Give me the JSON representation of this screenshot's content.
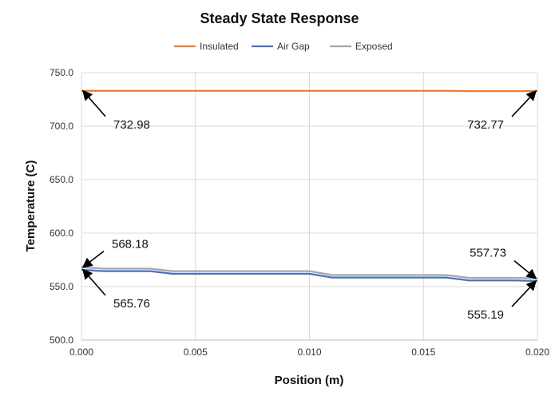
{
  "chart_data": {
    "type": "line",
    "title": "Steady State Response",
    "xlabel": "Position (m)",
    "ylabel": "Temperature (C)",
    "xlim": [
      0,
      0.02
    ],
    "ylim": [
      500,
      750
    ],
    "xticks": [
      "0.000",
      "0.005",
      "0.010",
      "0.015",
      "0.020"
    ],
    "yticks": [
      "500.0",
      "550.0",
      "600.0",
      "650.0",
      "700.0",
      "750.0"
    ],
    "grid": true,
    "legend_position": "top",
    "series": [
      {
        "name": "Insulated",
        "color": "#ED7D31",
        "x": [
          0,
          0.001,
          0.002,
          0.003,
          0.004,
          0.005,
          0.006,
          0.007,
          0.008,
          0.009,
          0.01,
          0.011,
          0.012,
          0.013,
          0.014,
          0.015,
          0.016,
          0.017,
          0.018,
          0.019,
          0.02
        ],
        "y": [
          732.98,
          732.98,
          732.98,
          732.98,
          732.98,
          732.98,
          732.98,
          732.98,
          732.98,
          732.98,
          732.98,
          732.95,
          732.95,
          732.95,
          732.95,
          732.95,
          732.95,
          732.77,
          732.77,
          732.77,
          732.77
        ]
      },
      {
        "name": "Air Gap",
        "color": "#4472C4",
        "x": [
          0,
          0.001,
          0.002,
          0.003,
          0.004,
          0.005,
          0.006,
          0.007,
          0.008,
          0.009,
          0.01,
          0.011,
          0.012,
          0.013,
          0.014,
          0.015,
          0.016,
          0.017,
          0.018,
          0.019,
          0.02
        ],
        "y": [
          565.76,
          564.5,
          564.5,
          564.5,
          562.0,
          562.0,
          562.0,
          562.0,
          562.0,
          562.0,
          562.0,
          558.5,
          558.5,
          558.5,
          558.5,
          558.5,
          558.5,
          555.8,
          555.8,
          555.8,
          555.19
        ]
      },
      {
        "name": "Exposed",
        "color": "#A5A5A5",
        "x": [
          0,
          0.001,
          0.002,
          0.003,
          0.004,
          0.005,
          0.006,
          0.007,
          0.008,
          0.009,
          0.01,
          0.011,
          0.012,
          0.013,
          0.014,
          0.015,
          0.016,
          0.017,
          0.018,
          0.019,
          0.02
        ],
        "y": [
          568.18,
          566.8,
          566.8,
          566.8,
          564.5,
          564.5,
          564.5,
          564.5,
          564.5,
          564.5,
          564.5,
          560.8,
          560.8,
          560.8,
          560.8,
          560.8,
          560.8,
          558.2,
          558.2,
          558.2,
          557.73
        ]
      }
    ],
    "annotations": [
      {
        "text": "732.98",
        "x": 0.0,
        "y": 732.98,
        "label_side": "lower-right"
      },
      {
        "text": "732.77",
        "x": 0.02,
        "y": 732.77,
        "label_side": "lower-left"
      },
      {
        "text": "568.18",
        "x": 0.0,
        "y": 568.18,
        "label_side": "upper-right"
      },
      {
        "text": "565.76",
        "x": 0.0,
        "y": 565.76,
        "label_side": "lower-right"
      },
      {
        "text": "557.73",
        "x": 0.02,
        "y": 557.73,
        "label_side": "upper-left"
      },
      {
        "text": "555.19",
        "x": 0.02,
        "y": 555.19,
        "label_side": "lower-left"
      }
    ]
  }
}
